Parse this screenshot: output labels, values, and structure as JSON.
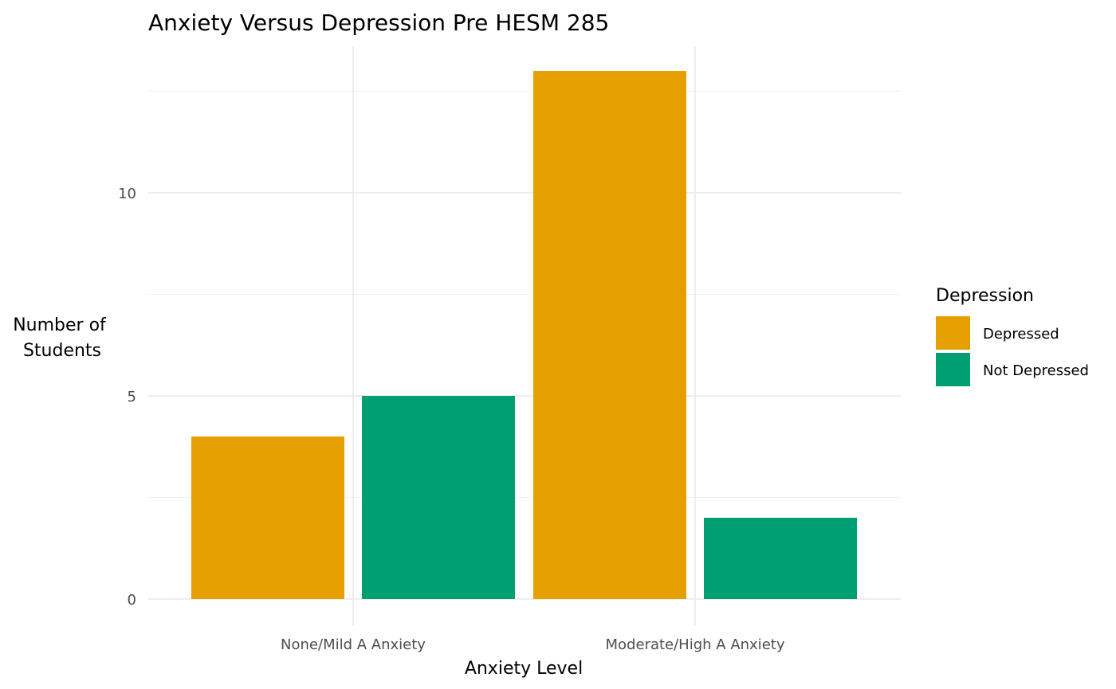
{
  "chart_data": {
    "type": "bar",
    "title": "Anxiety Versus Depression Pre HESM 285",
    "xlabel": "Anxiety Level",
    "ylabel": "Number of Students",
    "ylabel_lines": [
      "Number of",
      "Students"
    ],
    "categories": [
      "None/Mild A Anxiety",
      "Moderate/High A Anxiety"
    ],
    "series": [
      {
        "name": "Depressed",
        "values": [
          4,
          13
        ],
        "color": "#E69F00"
      },
      {
        "name": "Not Depressed",
        "values": [
          5,
          2
        ],
        "color": "#009E73"
      }
    ],
    "ylim": [
      0,
      13
    ],
    "yticks": [
      0,
      5,
      10
    ],
    "ytick_labels": [
      "0",
      "5",
      "10"
    ],
    "grid": true,
    "legend": {
      "title": "Depression",
      "position": "right"
    }
  }
}
